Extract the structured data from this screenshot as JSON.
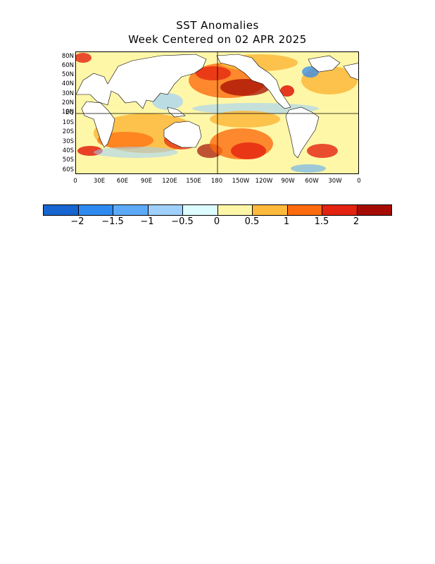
{
  "title": {
    "line1": "SST Anomalies",
    "line2": "Week Centered on 02 APR 2025"
  },
  "map": {
    "variable": "Sea surface temperature anomaly",
    "lat_labels": [
      "80N",
      "60N",
      "50N",
      "40N",
      "30N",
      "20N",
      "10N",
      "EQ",
      "10S",
      "20S",
      "30S",
      "40S",
      "50S",
      "60S"
    ],
    "lon_labels": [
      "0",
      "30E",
      "60E",
      "90E",
      "120E",
      "150E",
      "180",
      "150W",
      "120W",
      "90W",
      "60W",
      "30W",
      "0"
    ],
    "land_color": "#ffffff",
    "reference_lines": [
      "equator",
      "180 meridian"
    ]
  },
  "colorbar": {
    "colors": [
      "#1765d1",
      "#2d8af0",
      "#5caaf7",
      "#9ed0fb",
      "#ddfcff",
      "#fff7a8",
      "#fdb93b",
      "#fd6b0e",
      "#e3220f",
      "#a50b03"
    ],
    "labels": [
      "-2",
      "-1.5",
      "-1",
      "-0.5",
      "0",
      "0.5",
      "1",
      "1.5",
      "2"
    ]
  }
}
